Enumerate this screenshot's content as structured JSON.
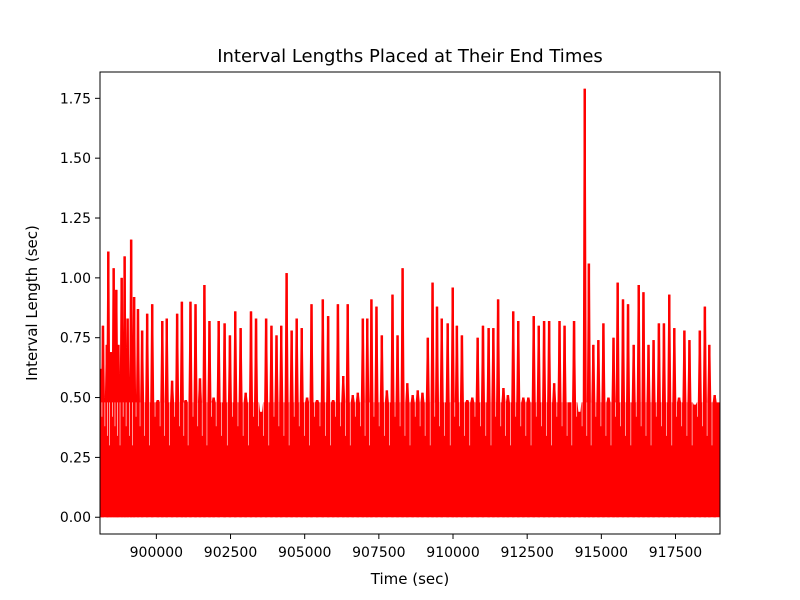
{
  "chart_data": {
    "type": "bar",
    "title": "Interval Lengths Placed at Their End Times",
    "xlabel": "Time (sec)",
    "ylabel": "Interval Length (sec)",
    "xlim": [
      898100,
      919000
    ],
    "ylim": [
      -0.07,
      1.86
    ],
    "xticks": [
      900000,
      902500,
      905000,
      907500,
      910000,
      912500,
      915000,
      917500
    ],
    "yticks": [
      0.0,
      0.25,
      0.5,
      0.75,
      1.0,
      1.25,
      1.5,
      1.75
    ],
    "grid": false,
    "colors": {
      "bars": "#ff0000"
    },
    "series": [
      {
        "description_peaks": "Dense red bars; prominent spikes listed as [x, y]",
        "points": [
          [
            898130,
            0.62
          ],
          [
            898200,
            0.8
          ],
          [
            898330,
            0.72
          ],
          [
            898380,
            1.11
          ],
          [
            898470,
            0.69
          ],
          [
            898560,
            1.04
          ],
          [
            898650,
            0.95
          ],
          [
            898720,
            0.72
          ],
          [
            898830,
            1.0
          ],
          [
            898930,
            1.09
          ],
          [
            899030,
            0.83
          ],
          [
            899150,
            1.16
          ],
          [
            899250,
            0.92
          ],
          [
            899380,
            0.87
          ],
          [
            899520,
            0.78
          ],
          [
            899690,
            0.85
          ],
          [
            899860,
            0.89
          ],
          [
            900050,
            0.49
          ],
          [
            900200,
            0.82
          ],
          [
            900350,
            0.83
          ],
          [
            900530,
            0.57
          ],
          [
            900700,
            0.85
          ],
          [
            900860,
            0.9
          ],
          [
            900990,
            0.49
          ],
          [
            901150,
            0.9
          ],
          [
            901320,
            0.89
          ],
          [
            901470,
            0.58
          ],
          [
            901620,
            0.97
          ],
          [
            901790,
            0.82
          ],
          [
            901930,
            0.5
          ],
          [
            902100,
            0.82
          ],
          [
            902300,
            0.81
          ],
          [
            902480,
            0.76
          ],
          [
            902660,
            0.86
          ],
          [
            902840,
            0.79
          ],
          [
            903010,
            0.52
          ],
          [
            903190,
            0.86
          ],
          [
            903360,
            0.83
          ],
          [
            903530,
            0.44
          ],
          [
            903700,
            0.83
          ],
          [
            903880,
            0.8
          ],
          [
            904050,
            0.76
          ],
          [
            904210,
            0.8
          ],
          [
            904390,
            1.02
          ],
          [
            904560,
            0.78
          ],
          [
            904730,
            0.83
          ],
          [
            904900,
            0.79
          ],
          [
            905080,
            0.5
          ],
          [
            905230,
            0.89
          ],
          [
            905420,
            0.49
          ],
          [
            905610,
            0.91
          ],
          [
            905790,
            0.84
          ],
          [
            905960,
            0.49
          ],
          [
            906120,
            0.89
          ],
          [
            906300,
            0.59
          ],
          [
            906450,
            0.89
          ],
          [
            906620,
            0.51
          ],
          [
            906790,
            0.52
          ],
          [
            906960,
            0.83
          ],
          [
            907110,
            0.83
          ],
          [
            907250,
            0.91
          ],
          [
            907420,
            0.88
          ],
          [
            907600,
            0.76
          ],
          [
            907770,
            0.53
          ],
          [
            907960,
            0.93
          ],
          [
            908130,
            0.76
          ],
          [
            908300,
            1.04
          ],
          [
            908460,
            0.56
          ],
          [
            908640,
            0.51
          ],
          [
            908810,
            0.53
          ],
          [
            908970,
            0.52
          ],
          [
            909150,
            0.75
          ],
          [
            909310,
            0.98
          ],
          [
            909460,
            0.88
          ],
          [
            909620,
            0.83
          ],
          [
            909820,
            0.81
          ],
          [
            909990,
            0.96
          ],
          [
            910130,
            0.8
          ],
          [
            910300,
            0.76
          ],
          [
            910480,
            0.49
          ],
          [
            910650,
            0.5
          ],
          [
            910830,
            0.75
          ],
          [
            911010,
            0.8
          ],
          [
            911200,
            0.79
          ],
          [
            911360,
            0.79
          ],
          [
            911520,
            0.91
          ],
          [
            911700,
            0.54
          ],
          [
            911850,
            0.51
          ],
          [
            912030,
            0.86
          ],
          [
            912200,
            0.82
          ],
          [
            912370,
            0.5
          ],
          [
            912540,
            0.5
          ],
          [
            912720,
            0.84
          ],
          [
            912890,
            0.8
          ],
          [
            913070,
            0.82
          ],
          [
            913240,
            0.82
          ],
          [
            913410,
            0.56
          ],
          [
            913590,
            0.82
          ],
          [
            913760,
            0.8
          ],
          [
            913930,
            0.48
          ],
          [
            914080,
            0.82
          ],
          [
            914260,
            0.44
          ],
          [
            914440,
            1.79
          ],
          [
            914580,
            1.06
          ],
          [
            914730,
            0.72
          ],
          [
            914900,
            0.74
          ],
          [
            915070,
            0.81
          ],
          [
            915240,
            0.5
          ],
          [
            915410,
            0.75
          ],
          [
            915550,
            0.98
          ],
          [
            915730,
            0.91
          ],
          [
            915900,
            0.89
          ],
          [
            916090,
            0.72
          ],
          [
            916260,
            0.97
          ],
          [
            916420,
            0.94
          ],
          [
            916590,
            0.72
          ],
          [
            916760,
            0.74
          ],
          [
            916940,
            0.81
          ],
          [
            917110,
            0.81
          ],
          [
            917290,
            0.93
          ],
          [
            917460,
            0.79
          ],
          [
            917620,
            0.5
          ],
          [
            917800,
            0.78
          ],
          [
            917970,
            0.74
          ],
          [
            918150,
            0.47
          ],
          [
            918320,
            0.78
          ],
          [
            918490,
            0.88
          ],
          [
            918640,
            0.72
          ],
          [
            918820,
            0.51
          ]
        ]
      }
    ]
  }
}
